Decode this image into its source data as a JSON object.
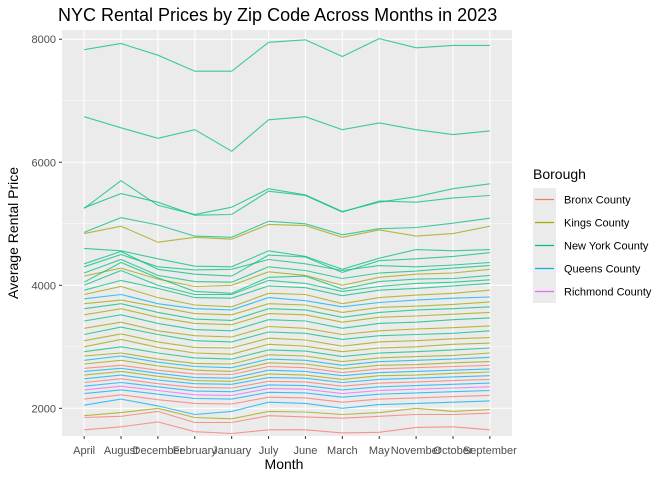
{
  "chart_data": {
    "type": "line",
    "title": "NYC Rental Prices by Zip Code Across Months in 2023",
    "xlabel": "Month",
    "ylabel": "Average Rental Price",
    "categories": [
      "April",
      "August",
      "December",
      "February",
      "January",
      "July",
      "June",
      "March",
      "May",
      "November",
      "October",
      "September"
    ],
    "yticks": [
      2000,
      4000,
      6000,
      8000
    ],
    "ylim": [
      1550,
      8150
    ],
    "grid": true,
    "legend": {
      "title": "Borough",
      "position": "right",
      "items": [
        {
          "label": "Bronx County",
          "color": "#F8766D"
        },
        {
          "label": "Kings County",
          "color": "#A3A500"
        },
        {
          "label": "New York County",
          "color": "#00BF7D"
        },
        {
          "label": "Queens County",
          "color": "#00B0F6"
        },
        {
          "label": "Richmond County",
          "color": "#E76BF3"
        }
      ]
    },
    "series": [
      {
        "borough": "New York County",
        "values": [
          7830,
          7930,
          7740,
          7480,
          7480,
          7950,
          7990,
          7720,
          8010,
          7860,
          7900,
          7900
        ]
      },
      {
        "borough": "New York County",
        "values": [
          6740,
          6560,
          6390,
          6530,
          6180,
          6690,
          6740,
          6530,
          6640,
          6530,
          6450,
          6510
        ]
      },
      {
        "borough": "New York County",
        "values": [
          5250,
          5700,
          5300,
          5150,
          5270,
          5570,
          5470,
          5200,
          5350,
          5440,
          5570,
          5650
        ]
      },
      {
        "borough": "New York County",
        "values": [
          5260,
          5490,
          5350,
          5140,
          5150,
          5530,
          5460,
          5190,
          5370,
          5350,
          5420,
          5460
        ]
      },
      {
        "borough": "New York County",
        "values": [
          4860,
          5100,
          4980,
          4800,
          4780,
          5040,
          5000,
          4820,
          4920,
          4940,
          5010,
          5090
        ]
      },
      {
        "borough": "Kings County",
        "values": [
          4840,
          4960,
          4700,
          4780,
          4750,
          4990,
          4970,
          4780,
          4900,
          4800,
          4840,
          4960
        ]
      },
      {
        "borough": "New York County",
        "values": [
          4600,
          4560,
          4430,
          4310,
          4300,
          4560,
          4470,
          4260,
          4440,
          4580,
          4560,
          4580
        ]
      },
      {
        "borough": "New York County",
        "values": [
          4350,
          4550,
          4260,
          4180,
          4150,
          4490,
          4460,
          4210,
          4400,
          4430,
          4470,
          4530
        ]
      },
      {
        "borough": "New York County",
        "values": [
          4300,
          4500,
          4300,
          4250,
          4260,
          4420,
          4350,
          4240,
          4320,
          4300,
          4330,
          4370
        ]
      },
      {
        "borough": "New York County",
        "values": [
          4200,
          4420,
          4160,
          4060,
          4050,
          4300,
          4240,
          4110,
          4200,
          4230,
          4280,
          4320
        ]
      },
      {
        "borough": "Kings County",
        "values": [
          4150,
          4280,
          4100,
          3980,
          4000,
          4220,
          4160,
          4000,
          4130,
          4180,
          4200,
          4260
        ]
      },
      {
        "borough": "New York County",
        "values": [
          4050,
          4370,
          4120,
          3900,
          3870,
          4130,
          4150,
          3940,
          4060,
          4100,
          4110,
          4160
        ]
      },
      {
        "borough": "New York County",
        "values": [
          4000,
          4240,
          4000,
          3850,
          3850,
          4080,
          4030,
          3900,
          3980,
          4030,
          4050,
          4090
        ]
      },
      {
        "borough": "New York County",
        "values": [
          3920,
          4080,
          3950,
          3800,
          3790,
          3990,
          3960,
          3830,
          3920,
          3950,
          3990,
          4030
        ]
      },
      {
        "borough": "Kings County",
        "values": [
          3850,
          3980,
          3800,
          3680,
          3650,
          3870,
          3850,
          3700,
          3800,
          3840,
          3870,
          3920
        ]
      },
      {
        "borough": "Queens County",
        "values": [
          3780,
          3850,
          3700,
          3620,
          3600,
          3800,
          3750,
          3650,
          3720,
          3760,
          3790,
          3810
        ]
      },
      {
        "borough": "Kings County",
        "values": [
          3700,
          3760,
          3650,
          3540,
          3520,
          3700,
          3680,
          3560,
          3640,
          3660,
          3690,
          3730
        ]
      },
      {
        "borough": "New York County",
        "values": [
          3620,
          3700,
          3560,
          3450,
          3430,
          3620,
          3600,
          3480,
          3560,
          3600,
          3620,
          3650
        ]
      },
      {
        "borough": "Kings County",
        "values": [
          3520,
          3620,
          3480,
          3380,
          3360,
          3540,
          3520,
          3400,
          3480,
          3500,
          3530,
          3560
        ]
      },
      {
        "borough": "New York County",
        "values": [
          3420,
          3520,
          3380,
          3280,
          3260,
          3440,
          3420,
          3300,
          3380,
          3400,
          3440,
          3470
        ]
      },
      {
        "borough": "Kings County",
        "values": [
          3300,
          3400,
          3260,
          3180,
          3160,
          3330,
          3300,
          3200,
          3260,
          3290,
          3310,
          3340
        ]
      },
      {
        "borough": "New York County",
        "values": [
          3200,
          3320,
          3200,
          3100,
          3080,
          3240,
          3220,
          3120,
          3180,
          3200,
          3220,
          3260
        ]
      },
      {
        "borough": "Kings County",
        "values": [
          3100,
          3210,
          3080,
          2990,
          2980,
          3140,
          3110,
          3010,
          3080,
          3100,
          3130,
          3150
        ]
      },
      {
        "borough": "Kings County",
        "values": [
          3000,
          3120,
          2990,
          2900,
          2880,
          3040,
          3010,
          2920,
          2980,
          3000,
          3040,
          3060
        ]
      },
      {
        "borough": "New York County",
        "values": [
          2920,
          3000,
          2900,
          2820,
          2800,
          2950,
          2930,
          2840,
          2900,
          2920,
          2950,
          2980
        ]
      },
      {
        "borough": "Kings County",
        "values": [
          2850,
          2900,
          2800,
          2730,
          2720,
          2870,
          2850,
          2760,
          2820,
          2840,
          2860,
          2900
        ]
      },
      {
        "borough": "Queens County",
        "values": [
          2780,
          2850,
          2750,
          2680,
          2660,
          2800,
          2780,
          2700,
          2760,
          2780,
          2800,
          2830
        ]
      },
      {
        "borough": "Kings County",
        "values": [
          2720,
          2780,
          2690,
          2620,
          2600,
          2740,
          2720,
          2640,
          2700,
          2710,
          2740,
          2760
        ]
      },
      {
        "borough": "Bronx County",
        "values": [
          2650,
          2700,
          2620,
          2560,
          2550,
          2680,
          2660,
          2580,
          2640,
          2660,
          2680,
          2700
        ]
      },
      {
        "borough": "Queens County",
        "values": [
          2600,
          2650,
          2570,
          2500,
          2490,
          2620,
          2600,
          2530,
          2580,
          2600,
          2620,
          2640
        ]
      },
      {
        "borough": "Kings County",
        "values": [
          2540,
          2600,
          2520,
          2450,
          2440,
          2560,
          2540,
          2470,
          2530,
          2540,
          2570,
          2590
        ]
      },
      {
        "borough": "Queens County",
        "values": [
          2480,
          2540,
          2460,
          2400,
          2390,
          2500,
          2490,
          2420,
          2470,
          2490,
          2510,
          2530
        ]
      },
      {
        "borough": "Bronx County",
        "values": [
          2420,
          2480,
          2400,
          2340,
          2330,
          2440,
          2430,
          2360,
          2410,
          2430,
          2450,
          2470
        ]
      },
      {
        "borough": "Queens County",
        "values": [
          2360,
          2420,
          2350,
          2280,
          2270,
          2380,
          2370,
          2300,
          2350,
          2370,
          2390,
          2410
        ]
      },
      {
        "borough": "Richmond County",
        "values": [
          2300,
          2360,
          2290,
          2220,
          2210,
          2320,
          2310,
          2240,
          2290,
          2310,
          2330,
          2350
        ]
      },
      {
        "borough": "Queens County",
        "values": [
          2240,
          2300,
          2230,
          2160,
          2150,
          2260,
          2250,
          2180,
          2230,
          2250,
          2270,
          2290
        ]
      },
      {
        "borough": "Bronx County",
        "values": [
          2150,
          2220,
          2140,
          2080,
          2070,
          2180,
          2170,
          2100,
          2150,
          2170,
          2190,
          2210
        ]
      },
      {
        "borough": "Queens County",
        "values": [
          2050,
          2150,
          2040,
          1900,
          1950,
          2100,
          2080,
          2000,
          2060,
          2080,
          2100,
          2120
        ]
      },
      {
        "borough": "Kings County",
        "values": [
          1880,
          1930,
          2000,
          1850,
          1830,
          1950,
          1940,
          1900,
          1930,
          2000,
          1950,
          1980
        ]
      },
      {
        "borough": "Bronx County",
        "values": [
          1850,
          1870,
          1950,
          1770,
          1770,
          1880,
          1860,
          1840,
          1870,
          1900,
          1900,
          1920
        ]
      },
      {
        "borough": "Bronx County",
        "values": [
          1650,
          1700,
          1780,
          1620,
          1590,
          1650,
          1650,
          1600,
          1610,
          1690,
          1700,
          1650
        ]
      }
    ]
  }
}
